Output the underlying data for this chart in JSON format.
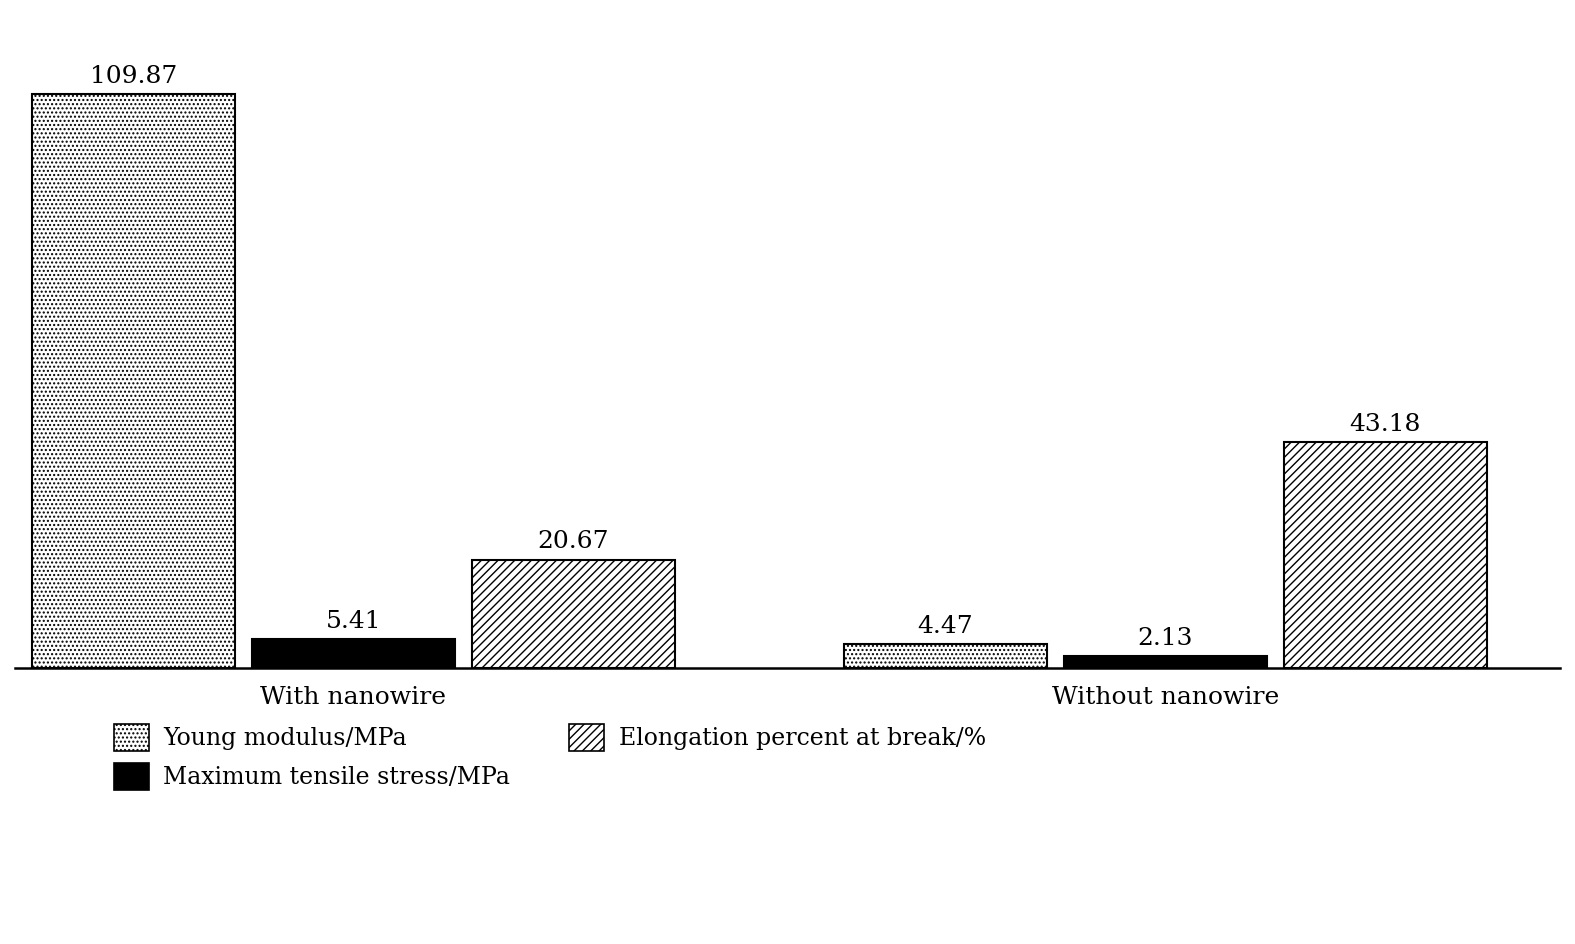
{
  "groups": [
    "With nanowire",
    "Without nanowire"
  ],
  "series": [
    {
      "label": "Young modulus/MPa",
      "values": [
        109.87,
        4.47
      ],
      "hatch": "....",
      "facecolor": "white",
      "edgecolor": "black"
    },
    {
      "label": "Maximum tensile stress/MPa",
      "values": [
        5.41,
        2.13
      ],
      "hatch": "",
      "facecolor": "black",
      "edgecolor": "black"
    },
    {
      "label": "Elongation percent at break/%",
      "values": [
        20.67,
        43.18
      ],
      "hatch": "////",
      "facecolor": "white",
      "edgecolor": "black"
    }
  ],
  "bar_width": 0.18,
  "ylim": [
    0,
    125
  ],
  "background_color": "#ffffff",
  "bar_label_fontsize": 18,
  "legend_fontsize": 17,
  "group_label_fontsize": 18,
  "group_centers": [
    0.38,
    1.1
  ]
}
